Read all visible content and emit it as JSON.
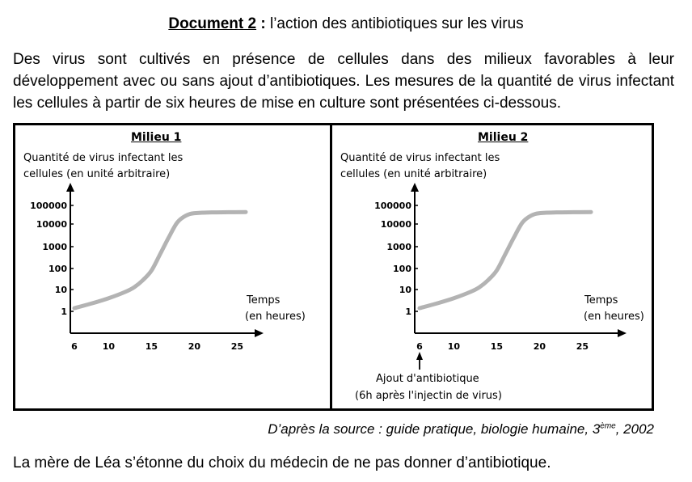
{
  "document": {
    "label": "Document 2",
    "colon": ":",
    "title": "l’action des antibiotiques sur les virus",
    "intro": "Des virus sont cultivés en présence de cellules dans des milieux favorables à leur développement avec ou sans ajout d’antibiotiques. Les mesures de la quantité de virus infectant les cellules à partir de six heures de mise en culture sont présentées ci-dessous.",
    "source_prefix": "D’après la source : guide pratique, biologie humaine, 3",
    "source_sup": "ème",
    "source_suffix": ", 2002",
    "closing": "La mère de Léa s’étonne du choix du médecin de ne pas donner d’antibiotique."
  },
  "chart_data": [
    {
      "type": "line",
      "title": "Milieu 1",
      "ylabel_line1": "Quantité de virus infectant les",
      "ylabel_line2": "cellules (en unité arbitraire)",
      "xlabel_line1": "Temps",
      "xlabel_line2": "(en heures)",
      "x_ticks": [
        "6",
        "10",
        "15",
        "20",
        "25"
      ],
      "y_ticks": [
        "1",
        "10",
        "100",
        "1000",
        "10000",
        "100000"
      ],
      "yscale": "log",
      "series": [
        {
          "x": [
            6,
            8,
            10,
            12,
            13,
            14,
            15,
            16,
            17,
            18,
            19,
            20,
            22,
            24,
            26
          ],
          "y": [
            1.4,
            2.3,
            4,
            8,
            13,
            28,
            80,
            450,
            2500,
            12000,
            28000,
            38000,
            42000,
            43000,
            44000
          ]
        }
      ],
      "color": "#b3b3b3"
    },
    {
      "type": "line",
      "title": "Milieu 2",
      "ylabel_line1": "Quantité de virus infectant les",
      "ylabel_line2": "cellules (en unité arbitraire)",
      "xlabel_line1": "Temps",
      "xlabel_line2": "(en heures)",
      "x_ticks": [
        "6",
        "10",
        "15",
        "20",
        "25"
      ],
      "y_ticks": [
        "1",
        "10",
        "100",
        "1000",
        "10000",
        "100000"
      ],
      "yscale": "log",
      "annotation_line1": "Ajout d'antibiotique",
      "annotation_line2": "(6h après l'injectin de virus)",
      "annotation_x": 6,
      "series": [
        {
          "x": [
            6,
            8,
            10,
            12,
            13,
            14,
            15,
            16,
            17,
            18,
            19,
            20,
            22,
            24,
            26
          ],
          "y": [
            1.4,
            2.3,
            4,
            8,
            13,
            28,
            80,
            450,
            2500,
            12000,
            28000,
            38000,
            42000,
            43000,
            44000
          ]
        }
      ],
      "color": "#b3b3b3"
    }
  ]
}
